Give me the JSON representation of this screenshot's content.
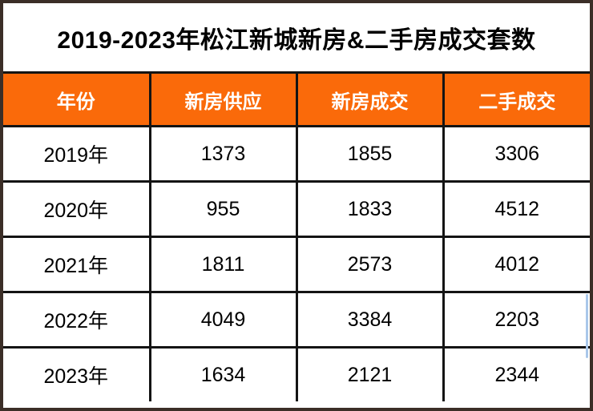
{
  "title": "2019-2023年松江新城新房&二手房成交套数",
  "colors": {
    "header_bg": "#FA6A0A",
    "header_text": "#FFFFFF",
    "grid_line": "#141414",
    "outer_border": "#3B2E27",
    "body_text": "#000000",
    "artifact_blue": "#A9C7EA"
  },
  "table": {
    "headers": [
      "年份",
      "新房供应",
      "新房成交",
      "二手成交"
    ],
    "rows": [
      [
        "2019年",
        "1373",
        "1855",
        "3306"
      ],
      [
        "2020年",
        "955",
        "1833",
        "4512"
      ],
      [
        "2021年",
        "1811",
        "2573",
        "4012"
      ],
      [
        "2022年",
        "4049",
        "3384",
        "2203"
      ],
      [
        "2023年",
        "1634",
        "2121",
        "2344"
      ]
    ]
  },
  "chart_data": {
    "type": "table",
    "title": "2019-2023年松江新城新房&二手房成交套数",
    "categories": [
      "2019年",
      "2020年",
      "2021年",
      "2022年",
      "2023年"
    ],
    "series": [
      {
        "name": "新房供应",
        "values": [
          1373,
          955,
          1811,
          4049,
          1634
        ]
      },
      {
        "name": "新房成交",
        "values": [
          1855,
          1833,
          2573,
          3384,
          2121
        ]
      },
      {
        "name": "二手成交",
        "values": [
          3306,
          4512,
          4012,
          2203,
          2344
        ]
      }
    ],
    "legend_position": "header-row",
    "grid": true
  }
}
